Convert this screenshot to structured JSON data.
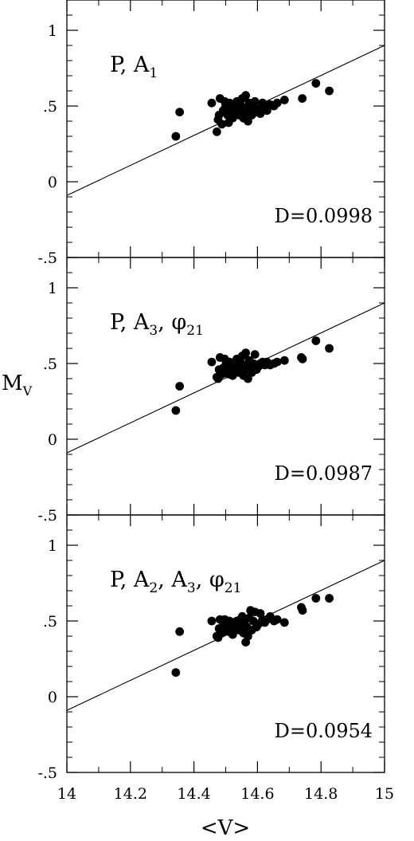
{
  "chart_data": {
    "type": "scatter",
    "xlabel": "<V>",
    "ylabel": {
      "main": "M",
      "sub": "V"
    },
    "xlim": [
      14,
      15
    ],
    "ylim": [
      -0.5,
      1.2
    ],
    "x_ticks": [
      "14",
      "14.2",
      "14.4",
      "14.6",
      "14.8",
      "15"
    ],
    "y_ticks": [
      "-.5",
      "0",
      ".5",
      "1"
    ],
    "panels": [
      {
        "label_parts": [
          {
            "text": "P, A"
          },
          {
            "text": "1",
            "sub": true
          }
        ],
        "d_label": "D=0.0998",
        "fit_line": {
          "x": [
            14,
            15
          ],
          "y": [
            -0.09,
            0.9
          ]
        },
        "points": [
          [
            14.343,
            0.3
          ],
          [
            14.355,
            0.46
          ],
          [
            14.456,
            0.52
          ],
          [
            14.472,
            0.33
          ],
          [
            14.476,
            0.41
          ],
          [
            14.479,
            0.44
          ],
          [
            14.482,
            0.55
          ],
          [
            14.488,
            0.38
          ],
          [
            14.492,
            0.47
          ],
          [
            14.497,
            0.53
          ],
          [
            14.5,
            0.5
          ],
          [
            14.506,
            0.44
          ],
          [
            14.509,
            0.39
          ],
          [
            14.512,
            0.52
          ],
          [
            14.515,
            0.48
          ],
          [
            14.519,
            0.45
          ],
          [
            14.522,
            0.42
          ],
          [
            14.527,
            0.5
          ],
          [
            14.531,
            0.47
          ],
          [
            14.535,
            0.53
          ],
          [
            14.538,
            0.46
          ],
          [
            14.542,
            0.44
          ],
          [
            14.546,
            0.51
          ],
          [
            14.549,
            0.48
          ],
          [
            14.552,
            0.55
          ],
          [
            14.556,
            0.42
          ],
          [
            14.559,
            0.49
          ],
          [
            14.563,
            0.57
          ],
          [
            14.567,
            0.46
          ],
          [
            14.57,
            0.4
          ],
          [
            14.574,
            0.52
          ],
          [
            14.578,
            0.48
          ],
          [
            14.582,
            0.44
          ],
          [
            14.587,
            0.5
          ],
          [
            14.592,
            0.53
          ],
          [
            14.597,
            0.46
          ],
          [
            14.603,
            0.48
          ],
          [
            14.609,
            0.45
          ],
          [
            14.616,
            0.52
          ],
          [
            14.623,
            0.49
          ],
          [
            14.63,
            0.47
          ],
          [
            14.64,
            0.51
          ],
          [
            14.652,
            0.5
          ],
          [
            14.662,
            0.52
          ],
          [
            14.685,
            0.54
          ],
          [
            14.741,
            0.55
          ],
          [
            14.784,
            0.65
          ],
          [
            14.826,
            0.6
          ]
        ]
      },
      {
        "label_parts": [
          {
            "text": "P, A"
          },
          {
            "text": "3",
            "sub": true
          },
          {
            "text": ", φ"
          },
          {
            "text": "21",
            "sub": true
          }
        ],
        "d_label": "D=0.0987",
        "fit_line": {
          "x": [
            14,
            15
          ],
          "y": [
            -0.09,
            0.9
          ]
        },
        "points": [
          [
            14.343,
            0.19
          ],
          [
            14.355,
            0.35
          ],
          [
            14.456,
            0.51
          ],
          [
            14.472,
            0.41
          ],
          [
            14.476,
            0.4
          ],
          [
            14.479,
            0.46
          ],
          [
            14.482,
            0.54
          ],
          [
            14.488,
            0.43
          ],
          [
            14.492,
            0.47
          ],
          [
            14.497,
            0.53
          ],
          [
            14.5,
            0.49
          ],
          [
            14.506,
            0.44
          ],
          [
            14.509,
            0.43
          ],
          [
            14.512,
            0.51
          ],
          [
            14.515,
            0.48
          ],
          [
            14.519,
            0.45
          ],
          [
            14.522,
            0.42
          ],
          [
            14.527,
            0.5
          ],
          [
            14.531,
            0.47
          ],
          [
            14.535,
            0.53
          ],
          [
            14.538,
            0.46
          ],
          [
            14.542,
            0.44
          ],
          [
            14.546,
            0.51
          ],
          [
            14.549,
            0.48
          ],
          [
            14.552,
            0.55
          ],
          [
            14.556,
            0.42
          ],
          [
            14.559,
            0.49
          ],
          [
            14.563,
            0.57
          ],
          [
            14.567,
            0.46
          ],
          [
            14.57,
            0.4
          ],
          [
            14.574,
            0.52
          ],
          [
            14.578,
            0.48
          ],
          [
            14.582,
            0.44
          ],
          [
            14.587,
            0.5
          ],
          [
            14.592,
            0.56
          ],
          [
            14.597,
            0.46
          ],
          [
            14.603,
            0.48
          ],
          [
            14.609,
            0.5
          ],
          [
            14.616,
            0.51
          ],
          [
            14.623,
            0.49
          ],
          [
            14.63,
            0.51
          ],
          [
            14.64,
            0.49
          ],
          [
            14.652,
            0.5
          ],
          [
            14.662,
            0.51
          ],
          [
            14.685,
            0.52
          ],
          [
            14.738,
            0.54
          ],
          [
            14.742,
            0.53
          ],
          [
            14.784,
            0.65
          ],
          [
            14.826,
            0.6
          ]
        ]
      },
      {
        "label_parts": [
          {
            "text": "P, A"
          },
          {
            "text": "2",
            "sub": true
          },
          {
            "text": ", A"
          },
          {
            "text": "3",
            "sub": true
          },
          {
            "text": ", φ"
          },
          {
            "text": "21",
            "sub": true
          }
        ],
        "d_label": "D=0.0954",
        "fit_line": {
          "x": [
            14,
            15
          ],
          "y": [
            -0.09,
            0.9
          ]
        },
        "points": [
          [
            14.343,
            0.16
          ],
          [
            14.355,
            0.43
          ],
          [
            14.456,
            0.5
          ],
          [
            14.472,
            0.4
          ],
          [
            14.476,
            0.39
          ],
          [
            14.479,
            0.45
          ],
          [
            14.482,
            0.51
          ],
          [
            14.488,
            0.42
          ],
          [
            14.492,
            0.47
          ],
          [
            14.497,
            0.51
          ],
          [
            14.5,
            0.48
          ],
          [
            14.506,
            0.44
          ],
          [
            14.509,
            0.43
          ],
          [
            14.512,
            0.5
          ],
          [
            14.515,
            0.47
          ],
          [
            14.519,
            0.45
          ],
          [
            14.522,
            0.41
          ],
          [
            14.527,
            0.49
          ],
          [
            14.531,
            0.47
          ],
          [
            14.535,
            0.5
          ],
          [
            14.538,
            0.46
          ],
          [
            14.542,
            0.44
          ],
          [
            14.546,
            0.51
          ],
          [
            14.549,
            0.48
          ],
          [
            14.552,
            0.53
          ],
          [
            14.556,
            0.42
          ],
          [
            14.559,
            0.49
          ],
          [
            14.563,
            0.36
          ],
          [
            14.567,
            0.46
          ],
          [
            14.57,
            0.4
          ],
          [
            14.574,
            0.52
          ],
          [
            14.578,
            0.57
          ],
          [
            14.582,
            0.44
          ],
          [
            14.587,
            0.5
          ],
          [
            14.592,
            0.56
          ],
          [
            14.597,
            0.46
          ],
          [
            14.603,
            0.48
          ],
          [
            14.609,
            0.55
          ],
          [
            14.616,
            0.51
          ],
          [
            14.623,
            0.49
          ],
          [
            14.63,
            0.51
          ],
          [
            14.64,
            0.53
          ],
          [
            14.652,
            0.5
          ],
          [
            14.662,
            0.51
          ],
          [
            14.685,
            0.49
          ],
          [
            14.738,
            0.59
          ],
          [
            14.742,
            0.57
          ],
          [
            14.784,
            0.65
          ],
          [
            14.826,
            0.65
          ]
        ]
      }
    ]
  }
}
